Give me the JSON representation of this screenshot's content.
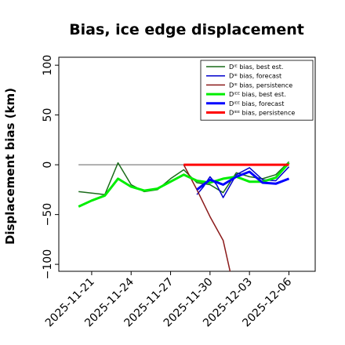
{
  "chart_data": {
    "type": "line",
    "title": "Bias, ice edge displacement",
    "ylabel": "Displacement bias (km)",
    "xlabel": "",
    "ylim": [
      -107,
      108
    ],
    "xlim": [
      "2025-11-18T12:00",
      "2025-12-08T00:00"
    ],
    "grid": false,
    "legend_position": "top-right",
    "yticks": [
      -100,
      -50,
      0,
      50,
      100
    ],
    "ytick_labels": [
      "−100",
      "−50",
      "0",
      "50",
      "100"
    ],
    "xticks": [
      {
        "date": "2025-11-21",
        "label": "2025-11-21",
        "color": "#000000"
      },
      {
        "date": "2025-11-24",
        "label": "2025-11-24",
        "color": "#000000"
      },
      {
        "date": "2025-11-27",
        "label": "2025-11-27",
        "color": "#228b22"
      },
      {
        "date": "2025-11-30",
        "label": "2025-11-30",
        "color": "#000000"
      },
      {
        "date": "2025-12-03",
        "label": "2025-12-03",
        "color": "#000000"
      },
      {
        "date": "2025-12-06",
        "label": "2025-12-06",
        "color": "#000000"
      }
    ],
    "zero_line": {
      "y": 0,
      "from": "2025-11-20",
      "to": "2025-12-06",
      "color": "#808080"
    },
    "series": [
      {
        "name": "Dᴵᴱ bias, best est.",
        "color": "#1a6b1a",
        "width": 1.5,
        "x": [
          "2025-11-20",
          "2025-11-22",
          "2025-11-23",
          "2025-11-24",
          "2025-11-25",
          "2025-11-26",
          "2025-11-27",
          "2025-11-28",
          "2025-11-29",
          "2025-11-30",
          "2025-12-01",
          "2025-12-02",
          "2025-12-03",
          "2025-12-04",
          "2025-12-05",
          "2025-12-06"
        ],
        "y": [
          -27,
          -30,
          2,
          -20,
          -27,
          -25,
          -14,
          -5,
          -18,
          -20,
          -28,
          -8,
          -12,
          -14,
          -10,
          3
        ]
      },
      {
        "name": "Dᴵᴱ bias, forecast",
        "color": "#0000cc",
        "width": 1.5,
        "x": [
          "2025-11-29",
          "2025-11-29.5",
          "2025-11-30",
          "2025-11-30.5",
          "2025-12-01",
          "2025-12-02",
          "2025-12-03",
          "2025-12-04",
          "2025-12-05",
          "2025-12-06"
        ],
        "y": [
          -30,
          -22,
          -12,
          -20,
          -33,
          -10,
          -3,
          -15,
          -16,
          -2
        ]
      },
      {
        "name": "Dᴵᴱ bias, persistence",
        "color": "#8b1a1a",
        "width": 1.5,
        "x": [
          "2025-11-28",
          "2025-11-29",
          "2025-11-30",
          "2025-12-01",
          "2025-12-02",
          "2025-12-03",
          "2025-12-04",
          "2025-12-05",
          "2025-12-06"
        ],
        "y": [
          0,
          -25,
          -52,
          -76,
          -135,
          null,
          null,
          null,
          null
        ]
      },
      {
        "name": "Dᴵᴱᴱ bias, best est.",
        "color": "#00ee00",
        "width": 3,
        "x": [
          "2025-11-20",
          "2025-11-21",
          "2025-11-22",
          "2025-11-23",
          "2025-11-24",
          "2025-11-25",
          "2025-11-26",
          "2025-11-27",
          "2025-11-28",
          "2025-11-29",
          "2025-11-30",
          "2025-12-01",
          "2025-12-02",
          "2025-12-03",
          "2025-12-04",
          "2025-12-05",
          "2025-12-06"
        ],
        "y": [
          -42,
          -36,
          -31,
          -14,
          -22,
          -26,
          -24,
          -17,
          -10,
          -16,
          -18,
          -14,
          -12,
          -17,
          -17,
          -13,
          2
        ]
      },
      {
        "name": "Dᴵᴱᴱ bias, forecast",
        "color": "#0000ff",
        "width": 3,
        "x": [
          "2025-11-29",
          "2025-11-30",
          "2025-12-01",
          "2025-12-02",
          "2025-12-03",
          "2025-12-04",
          "2025-12-05",
          "2025-12-06"
        ],
        "y": [
          -25,
          -15,
          -20,
          -12,
          -7,
          -18,
          -19,
          -14
        ]
      },
      {
        "name": "Dᴵᴱᴱ bias, persistence",
        "color": "#ff0000",
        "width": 3,
        "x": [
          "2025-11-28",
          "2025-12-06"
        ],
        "y": [
          0,
          0
        ]
      }
    ]
  }
}
